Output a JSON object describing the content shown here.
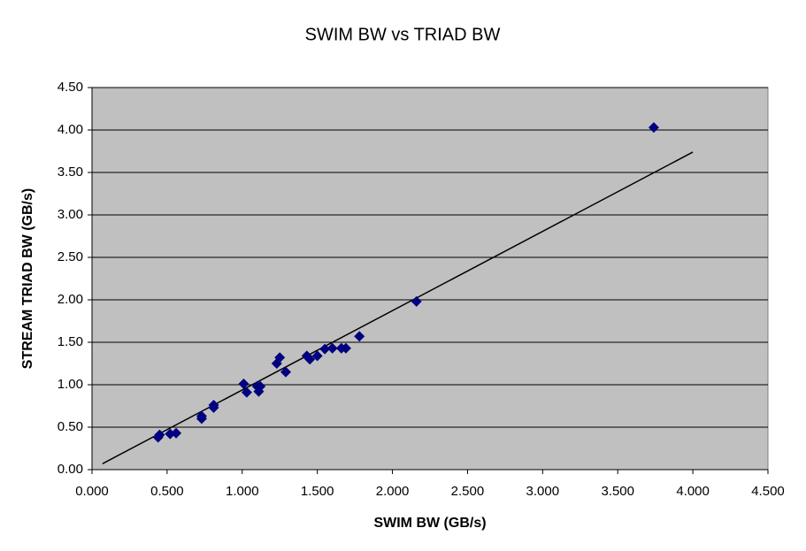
{
  "chart_data": {
    "type": "scatter",
    "title": "SWIM BW vs TRIAD BW",
    "x_label": "SWIM BW (GB/s)",
    "y_label": "STREAM TRIAD BW (GB/s)",
    "x": [
      0.44,
      0.45,
      0.52,
      0.56,
      0.73,
      0.73,
      0.81,
      0.81,
      1.01,
      1.03,
      1.1,
      1.11,
      1.12,
      1.23,
      1.25,
      1.29,
      1.43,
      1.45,
      1.5,
      1.55,
      1.6,
      1.66,
      1.69,
      1.78,
      2.16,
      3.74
    ],
    "values": [
      0.38,
      0.41,
      0.42,
      0.43,
      0.6,
      0.63,
      0.73,
      0.76,
      1.01,
      0.91,
      0.98,
      0.92,
      0.98,
      1.25,
      1.32,
      1.15,
      1.34,
      1.3,
      1.34,
      1.42,
      1.43,
      1.43,
      1.43,
      1.57,
      1.98,
      4.03
    ],
    "color": "#000080",
    "trendline": {
      "x": [
        0.07,
        4.0
      ],
      "y": [
        0.07,
        3.74
      ],
      "color": "#000000"
    },
    "xlim": [
      0,
      4.5
    ],
    "ylim": [
      0,
      4.5
    ],
    "xticks": [
      {
        "value": 0,
        "label": "0.000"
      },
      {
        "value": 0.5,
        "label": "0.500"
      },
      {
        "value": 1,
        "label": "1.000"
      },
      {
        "value": 1.5,
        "label": "1.500"
      },
      {
        "value": 2,
        "label": "2.000"
      },
      {
        "value": 2.5,
        "label": "2.500"
      },
      {
        "value": 3,
        "label": "3.000"
      },
      {
        "value": 3.5,
        "label": "3.500"
      },
      {
        "value": 4,
        "label": "4.000"
      },
      {
        "value": 4.5,
        "label": "4.500"
      }
    ],
    "yticks": [
      {
        "value": 0,
        "label": "0.00"
      },
      {
        "value": 0.5,
        "label": "0.50"
      },
      {
        "value": 1,
        "label": "1.00"
      },
      {
        "value": 1.5,
        "label": "1.50"
      },
      {
        "value": 2,
        "label": "2.00"
      },
      {
        "value": 2.5,
        "label": "2.50"
      },
      {
        "value": 3,
        "label": "3.00"
      },
      {
        "value": 3.5,
        "label": "3.50"
      },
      {
        "value": 4,
        "label": "4.00"
      },
      {
        "value": 4.5,
        "label": "4.50"
      }
    ],
    "grid": true,
    "plot_background": "#c0c0c0"
  }
}
